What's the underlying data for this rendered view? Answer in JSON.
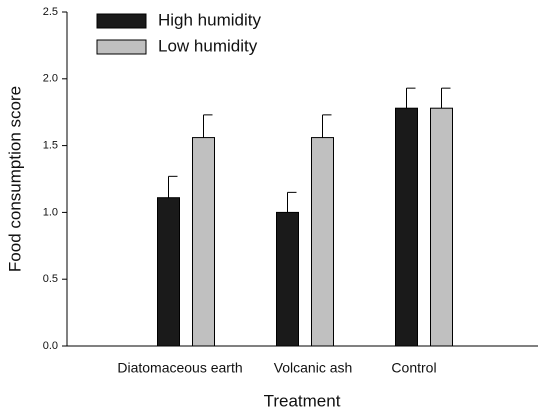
{
  "chart_data": {
    "type": "bar",
    "ylabel": "Food consumption score",
    "xlabel": "Treatment",
    "categories": [
      "Diatomaceous earth",
      "Volcanic ash",
      "Control"
    ],
    "series": [
      {
        "name": "High humidity",
        "color": "#1a1a1a",
        "values": [
          1.11,
          1.0,
          1.78
        ],
        "errors": [
          0.16,
          0.15,
          0.15
        ]
      },
      {
        "name": "Low humidity",
        "color": "#c0c0c0",
        "values": [
          1.56,
          1.56,
          1.78
        ],
        "errors": [
          0.17,
          0.17,
          0.15
        ]
      }
    ],
    "ylim": [
      0,
      2.5
    ],
    "yticks": [
      {
        "value": 0,
        "label": "0.0"
      },
      {
        "value": 0.5,
        "label": "0.5"
      },
      {
        "value": 1,
        "label": "1.0"
      },
      {
        "value": 1.5,
        "label": "1.5"
      },
      {
        "value": 2,
        "label": "2.0"
      },
      {
        "value": 2.5,
        "label": "2.5"
      }
    ]
  }
}
